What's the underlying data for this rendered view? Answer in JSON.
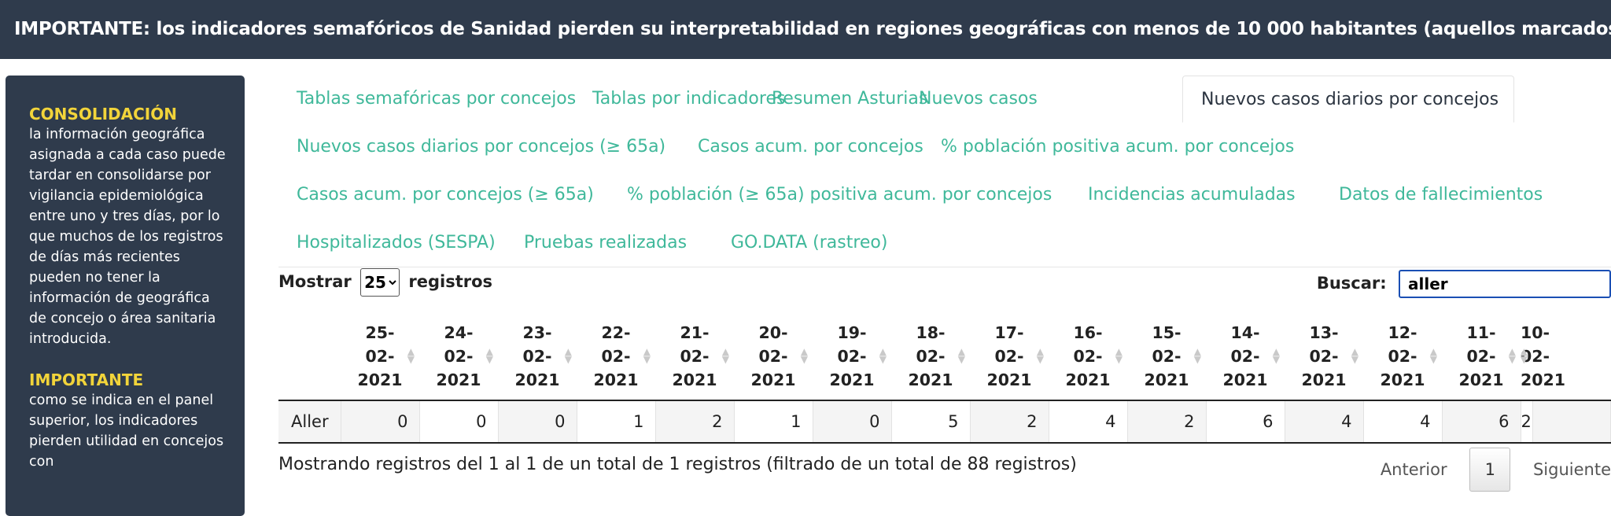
{
  "banner": {
    "text": "IMPORTANTE: los indicadores semafóricos de Sanidad pierden su interpretabilidad en regiones geográficas con menos de 10 000 habitantes (aquellos marcados con *)."
  },
  "sidebar": {
    "section1_title": "CONSOLIDACIÓN",
    "section1_text": "la información geográfica asignada a cada caso puede tardar en consolidarse por vigilancia epidemiológica entre uno y tres días, por lo que muchos de los registros de días más recientes pueden no tener la información de geográfica de concejo o área sanitaria introducida.",
    "section2_title": "IMPORTANTE",
    "section2_text": "como se indica en el panel superior, los indicadores pierden utilidad en concejos con"
  },
  "tabs": [
    "Tablas semafóricas por concejos",
    "Tablas por indicadores",
    "Resumen Asturias",
    "Nuevos casos",
    "Nuevos casos diarios por concejos",
    "Nuevos casos diarios por concejos (≥ 65a)",
    "Casos acum. por concejos",
    "% población positiva acum. por concejos",
    "Casos acum. por concejos (≥ 65a)",
    "% población (≥ 65a) positiva acum. por concejos",
    "Incidencias acumuladas",
    "Datos de fallecimientos",
    "Hospitalizados (SESPA)",
    "Pruebas realizadas",
    "GO.DATA (rastreo)"
  ],
  "active_tab": "Nuevos casos diarios por concejos",
  "controls": {
    "show_label": "Mostrar",
    "show_value": "25",
    "records_label": "registros",
    "search_label": "Buscar:",
    "search_value": "aller"
  },
  "table": {
    "columns": [
      [
        "25-",
        "02-",
        "2021"
      ],
      [
        "24-",
        "02-",
        "2021"
      ],
      [
        "23-",
        "02-",
        "2021"
      ],
      [
        "22-",
        "02-",
        "2021"
      ],
      [
        "21-",
        "02-",
        "2021"
      ],
      [
        "20-",
        "02-",
        "2021"
      ],
      [
        "19-",
        "02-",
        "2021"
      ],
      [
        "18-",
        "02-",
        "2021"
      ],
      [
        "17-",
        "02-",
        "2021"
      ],
      [
        "16-",
        "02-",
        "2021"
      ],
      [
        "15-",
        "02-",
        "2021"
      ],
      [
        "14-",
        "02-",
        "2021"
      ],
      [
        "13-",
        "02-",
        "2021"
      ],
      [
        "12-",
        "02-",
        "2021"
      ],
      [
        "11-",
        "02-",
        "2021"
      ],
      [
        "10-",
        "02-",
        "2021"
      ]
    ],
    "rows": [
      {
        "name": "Aller",
        "values": [
          "0",
          "0",
          "0",
          "1",
          "2",
          "1",
          "0",
          "5",
          "2",
          "4",
          "2",
          "6",
          "4",
          "4",
          "6",
          "2"
        ]
      }
    ]
  },
  "info_text": "Mostrando registros del 1 al 1 de un total de 1 registros (filtrado de un total de 88 registros)",
  "pager": {
    "prev": "Anterior",
    "current": "1",
    "next": "Siguiente"
  },
  "colors": {
    "banner_bg": "#2f3b4c",
    "accent": "#3fb89a",
    "highlight": "#f2d43a"
  }
}
